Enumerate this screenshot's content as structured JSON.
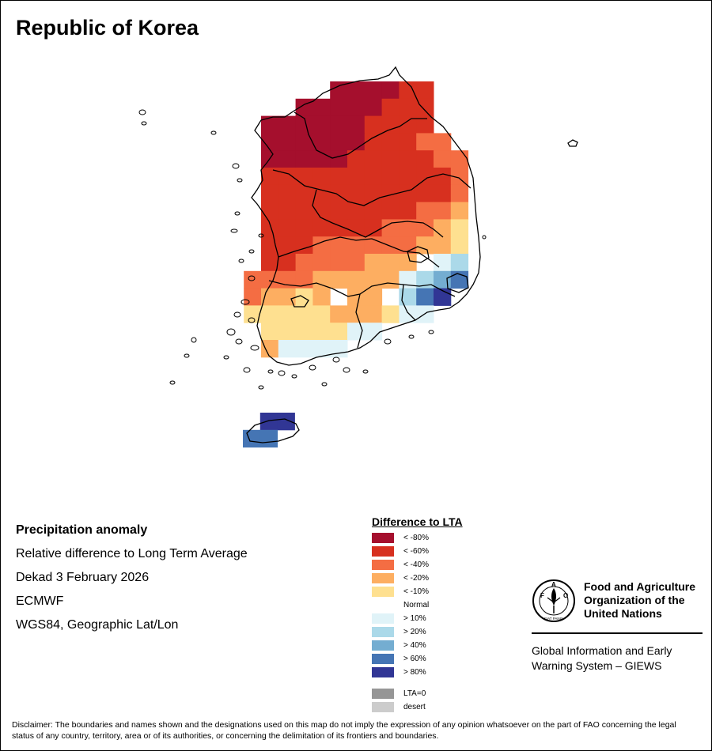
{
  "title": "Republic of Korea",
  "info": {
    "line1": "Precipitation anomaly",
    "line2": "Relative difference to Long Term Average",
    "line3": "Dekad 3 February 2026",
    "line4": "ECMWF",
    "line5": "WGS84, Geographic Lat/Lon"
  },
  "legend": {
    "title": "Difference to LTA",
    "items": [
      {
        "label": "< -80%",
        "color": "#a50f2d"
      },
      {
        "label": "< -60%",
        "color": "#d7301f"
      },
      {
        "label": "< -40%",
        "color": "#f46d43"
      },
      {
        "label": "< -20%",
        "color": "#fdae61"
      },
      {
        "label": "< -10%",
        "color": "#fee090"
      },
      {
        "label": "Normal",
        "color": "#ffffff"
      },
      {
        "label": "> 10%",
        "color": "#e0f3f8"
      },
      {
        "label": "> 20%",
        "color": "#abd9e9"
      },
      {
        "label": "> 40%",
        "color": "#74add1"
      },
      {
        "label": "> 60%",
        "color": "#4575b4"
      },
      {
        "label": "> 80%",
        "color": "#313695"
      }
    ],
    "extra": [
      {
        "label": "LTA=0",
        "color": "#969696"
      },
      {
        "label": "desert",
        "color": "#cccccc"
      }
    ]
  },
  "organization": {
    "name_line1": "Food and Agriculture",
    "name_line2": "Organization of the",
    "name_line3": "United Nations",
    "emblem_text": "FIAT PANIS",
    "giews_line1": "Global Information and Early",
    "giews_line2": "Warning System – GIEWS"
  },
  "disclaimer": "Disclaimer: The boundaries and names shown and the designations used on this map do not imply the expression of any opinion whatsoever on the part of FAO concerning the legal status of any country, territory, area or of its authorities, or concerning the delimitation of its frontiers and boundaries.",
  "anomaly_grid": {
    "class_index": "0=<-80% 1=<-60% 2=<-40% 3=<-20% 4=<-10% 5=Normal 6=>10% 7=>20% 8=>40% 9=>60% 10=>80%",
    "rows": [
      {
        "start": 4,
        "classes": [
          0,
          0,
          0,
          0,
          1,
          1
        ]
      },
      {
        "start": 2,
        "classes": [
          0,
          0,
          0,
          0,
          0,
          1,
          1,
          1
        ]
      },
      {
        "start": 0,
        "classes": [
          0,
          0,
          0,
          0,
          0,
          0,
          1,
          1,
          1,
          1
        ]
      },
      {
        "start": 0,
        "classes": [
          0,
          0,
          0,
          0,
          0,
          0,
          1,
          1,
          1,
          2,
          2
        ]
      },
      {
        "start": 0,
        "classes": [
          0,
          0,
          0,
          0,
          0,
          1,
          1,
          1,
          1,
          1,
          2,
          2
        ]
      },
      {
        "start": 0,
        "classes": [
          1,
          1,
          1,
          1,
          1,
          1,
          1,
          1,
          1,
          1,
          1,
          2
        ]
      },
      {
        "start": 0,
        "classes": [
          1,
          1,
          1,
          1,
          1,
          1,
          1,
          1,
          1,
          1,
          1,
          2
        ]
      },
      {
        "start": 0,
        "classes": [
          1,
          1,
          1,
          1,
          1,
          1,
          1,
          1,
          1,
          2,
          2,
          3
        ]
      },
      {
        "start": 0,
        "classes": [
          1,
          1,
          1,
          1,
          1,
          1,
          1,
          2,
          2,
          2,
          3,
          4
        ]
      },
      {
        "start": 0,
        "classes": [
          1,
          1,
          1,
          2,
          2,
          2,
          2,
          2,
          2,
          3,
          3,
          4
        ]
      },
      {
        "start": 0,
        "classes": [
          1,
          1,
          2,
          2,
          2,
          2,
          3,
          3,
          3,
          5,
          6,
          7
        ]
      },
      {
        "start": -1,
        "classes": [
          2,
          2,
          2,
          2,
          3,
          3,
          3,
          3,
          3,
          6,
          7,
          8,
          9
        ]
      },
      {
        "start": -1,
        "classes": [
          2,
          3,
          3,
          4,
          3,
          5,
          3,
          3,
          5,
          7,
          9,
          10
        ]
      },
      {
        "start": -1,
        "classes": [
          4,
          4,
          4,
          4,
          4,
          3,
          3,
          3,
          4,
          6,
          6
        ]
      },
      {
        "start": 0,
        "classes": [
          4,
          4,
          4,
          4,
          4,
          6,
          6
        ]
      },
      {
        "start": 0,
        "classes": [
          3,
          6,
          6,
          6,
          6
        ]
      }
    ],
    "jeju": [
      {
        "row": 0,
        "start": 1,
        "classes": [
          10,
          10
        ]
      },
      {
        "row": 1,
        "start": 0,
        "classes": [
          9,
          9
        ]
      }
    ]
  }
}
